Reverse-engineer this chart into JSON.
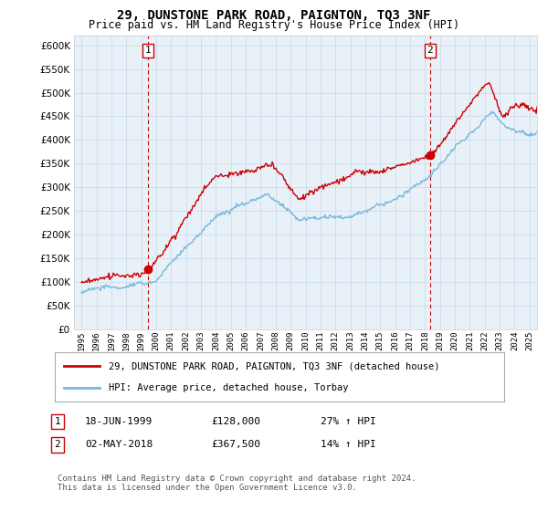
{
  "title": "29, DUNSTONE PARK ROAD, PAIGNTON, TQ3 3NF",
  "subtitle": "Price paid vs. HM Land Registry's House Price Index (HPI)",
  "ylim": [
    0,
    620000
  ],
  "ytick_values": [
    0,
    50000,
    100000,
    150000,
    200000,
    250000,
    300000,
    350000,
    400000,
    450000,
    500000,
    550000,
    600000
  ],
  "xlim_start": 1994.5,
  "xlim_end": 2025.5,
  "purchase1_x": 1999.46,
  "purchase1_y": 128000,
  "purchase1_label": "1",
  "purchase2_x": 2018.33,
  "purchase2_y": 367500,
  "purchase2_label": "2",
  "vline1_x": 1999.46,
  "vline2_x": 2018.33,
  "hpi_color": "#7ab8d9",
  "price_color": "#cc0000",
  "vline_color": "#cc0000",
  "chart_bg": "#e8f0f8",
  "legend_line1": "29, DUNSTONE PARK ROAD, PAIGNTON, TQ3 3NF (detached house)",
  "legend_line2": "HPI: Average price, detached house, Torbay",
  "transaction1_date": "18-JUN-1999",
  "transaction1_price": "£128,000",
  "transaction1_hpi": "27% ↑ HPI",
  "transaction2_date": "02-MAY-2018",
  "transaction2_price": "£367,500",
  "transaction2_hpi": "14% ↑ HPI",
  "footnote": "Contains HM Land Registry data © Crown copyright and database right 2024.\nThis data is licensed under the Open Government Licence v3.0.",
  "background_color": "#ffffff",
  "grid_color": "#c8d8e8"
}
